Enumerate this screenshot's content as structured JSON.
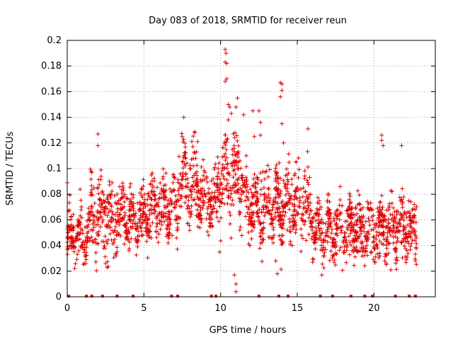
{
  "chart_data": {
    "type": "scatter",
    "title": "Day 083 of 2018, SRMTID for receiver reun",
    "xlabel": "GPS time / hours",
    "ylabel": "SRMTID / TECUs",
    "xlim": [
      0,
      24
    ],
    "ylim": [
      0,
      0.2
    ],
    "xticks": [
      0,
      5,
      10,
      15,
      20
    ],
    "xtick_labels": [
      "0",
      "5",
      "10",
      "15",
      "20"
    ],
    "yticks": [
      0,
      0.02,
      0.04,
      0.06,
      0.08,
      0.1,
      0.12,
      0.14,
      0.16,
      0.18,
      0.2
    ],
    "ytick_labels": [
      "0",
      "0.02",
      "0.04",
      "0.06",
      "0.08",
      "0.1",
      "0.12",
      "0.14",
      "0.16",
      "0.18",
      "0.2"
    ],
    "grid": true,
    "series_color": "#e00000",
    "marker": "plus",
    "bands": [
      {
        "t": [
          0.0,
          1.5
        ],
        "base": 0.047,
        "spread": 0.014
      },
      {
        "t": [
          1.5,
          2.8
        ],
        "base": 0.062,
        "spread": 0.02
      },
      {
        "t": [
          2.8,
          5.0
        ],
        "base": 0.06,
        "spread": 0.016
      },
      {
        "t": [
          5.0,
          7.2
        ],
        "base": 0.068,
        "spread": 0.016
      },
      {
        "t": [
          7.2,
          8.5
        ],
        "base": 0.09,
        "spread": 0.02
      },
      {
        "t": [
          8.5,
          9.8
        ],
        "base": 0.078,
        "spread": 0.016
      },
      {
        "t": [
          9.8,
          11.5
        ],
        "base": 0.092,
        "spread": 0.024
      },
      {
        "t": [
          11.5,
          13.5
        ],
        "base": 0.072,
        "spread": 0.02
      },
      {
        "t": [
          13.5,
          16.0
        ],
        "base": 0.07,
        "spread": 0.02
      },
      {
        "t": [
          16.0,
          19.0
        ],
        "base": 0.053,
        "spread": 0.016
      },
      {
        "t": [
          19.0,
          22.8
        ],
        "base": 0.052,
        "spread": 0.016
      }
    ],
    "highlights": [
      [
        0.0,
        0.089
      ],
      [
        2.0,
        0.127
      ],
      [
        2.0,
        0.118
      ],
      [
        10.3,
        0.193
      ],
      [
        10.35,
        0.19
      ],
      [
        10.3,
        0.183
      ],
      [
        10.4,
        0.182
      ],
      [
        10.4,
        0.17
      ],
      [
        10.3,
        0.168
      ],
      [
        10.5,
        0.15
      ],
      [
        10.6,
        0.148
      ],
      [
        10.7,
        0.143
      ],
      [
        10.5,
        0.138
      ],
      [
        11.1,
        0.155
      ],
      [
        11.0,
        0.148
      ],
      [
        11.5,
        0.142
      ],
      [
        12.1,
        0.145
      ],
      [
        12.5,
        0.145
      ],
      [
        12.6,
        0.136
      ],
      [
        12.6,
        0.126
      ],
      [
        13.9,
        0.167
      ],
      [
        14.0,
        0.166
      ],
      [
        14.0,
        0.161
      ],
      [
        13.9,
        0.156
      ],
      [
        14.0,
        0.135
      ],
      [
        14.1,
        0.12
      ],
      [
        15.7,
        0.131
      ],
      [
        12.2,
        0.125
      ],
      [
        20.5,
        0.126
      ],
      [
        20.5,
        0.122
      ],
      [
        20.6,
        0.118
      ],
      [
        21.8,
        0.118
      ],
      [
        8.5,
        0.121
      ],
      [
        7.6,
        0.14
      ],
      [
        11.0,
        0.01
      ],
      [
        11.0,
        0.004
      ],
      [
        10.9,
        0.017
      ],
      [
        2.5,
        0.026
      ],
      [
        2.6,
        0.023
      ],
      [
        16.6,
        0.017
      ],
      [
        21.1,
        0.021
      ],
      [
        13.7,
        0.018
      ],
      [
        13.6,
        0.028
      ],
      [
        1.1,
        0.026
      ],
      [
        1.2,
        0.026
      ],
      [
        17.4,
        0.027
      ]
    ],
    "zero_points": [
      0.1,
      1.25,
      1.6,
      2.3,
      3.25,
      4.3,
      6.8,
      7.2,
      9.4,
      9.7,
      12.5,
      13.8,
      14.4,
      16.5,
      17.3,
      18.5,
      19.4,
      19.9,
      21.4,
      22.3,
      22.7
    ]
  }
}
